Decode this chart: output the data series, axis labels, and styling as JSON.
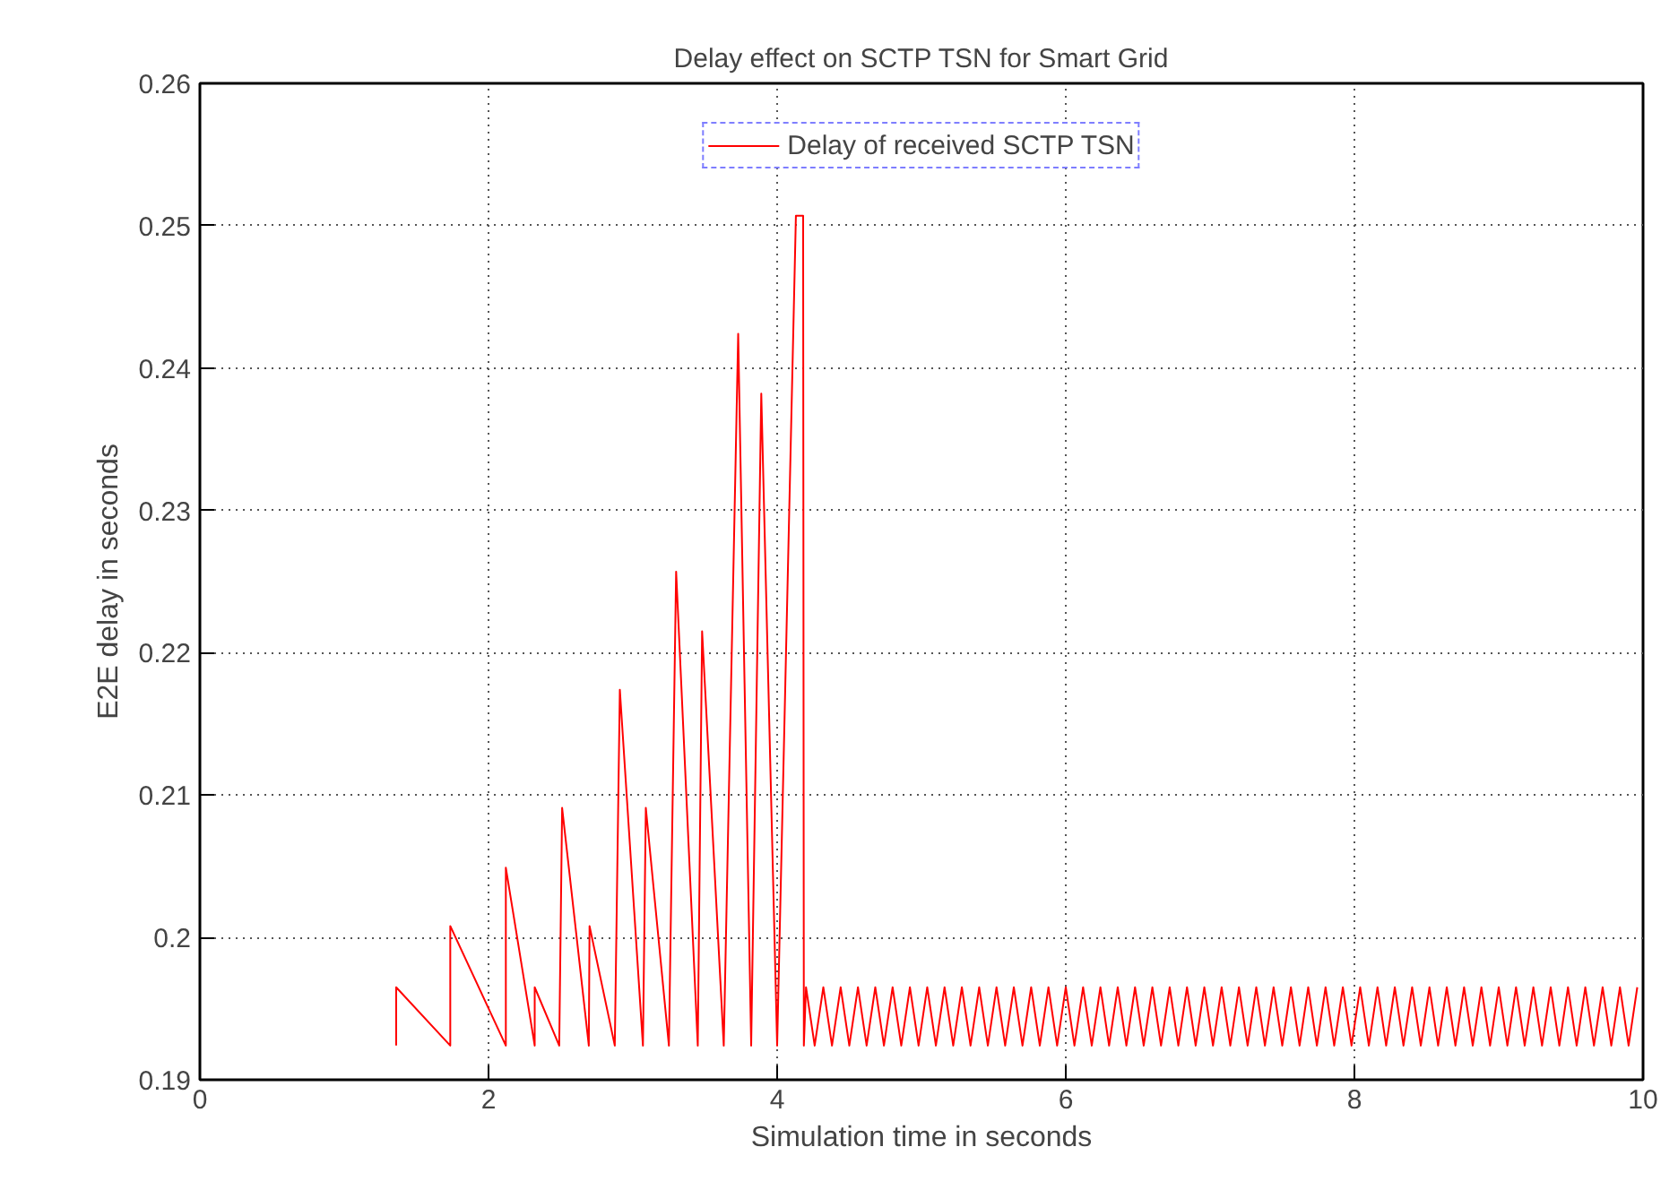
{
  "chart_data": {
    "type": "line",
    "title": "Delay effect on SCTP TSN for Smart Grid",
    "xlabel": "Simulation time in seconds",
    "ylabel": "E2E delay in seconds",
    "xlim": [
      0,
      10
    ],
    "xticks": [
      0,
      2,
      4,
      6,
      8,
      10
    ],
    "ylim": [
      0.19,
      0.26
    ],
    "yticks": [
      0.19,
      0.2,
      0.21,
      0.22,
      0.23,
      0.24,
      0.25,
      0.26
    ],
    "grid": true,
    "legend": "top",
    "line_style": "solid",
    "series": [
      {
        "name": "Delay of received SCTP TSN",
        "color": "#ff0000",
        "x": [
          1.36,
          1.36,
          1.735,
          1.735,
          2.12,
          2.12,
          2.32,
          2.32,
          2.49,
          2.51,
          2.695,
          2.7,
          2.875,
          2.91,
          3.07,
          3.09,
          3.25,
          3.3,
          3.45,
          3.48,
          3.63,
          3.73,
          3.82,
          3.89,
          4.0,
          4.13,
          4.18,
          4.185,
          4.2,
          4.26,
          4.32,
          4.38,
          4.44,
          4.5,
          4.56,
          4.62,
          4.68,
          4.74,
          4.8,
          4.86,
          4.92,
          4.98,
          5.04,
          5.1,
          5.16,
          5.22,
          5.28,
          5.34,
          5.4,
          5.46,
          5.52,
          5.58,
          5.64,
          5.7,
          5.76,
          5.82,
          5.88,
          5.94,
          6.0,
          6.06,
          6.12,
          6.18,
          6.24,
          6.3,
          6.36,
          6.42,
          6.48,
          6.54,
          6.6,
          6.66,
          6.72,
          6.78,
          6.84,
          6.9,
          6.96,
          7.02,
          7.08,
          7.14,
          7.2,
          7.26,
          7.32,
          7.38,
          7.44,
          7.5,
          7.56,
          7.62,
          7.68,
          7.74,
          7.8,
          7.86,
          7.92,
          7.98,
          8.04,
          8.1,
          8.16,
          8.22,
          8.28,
          8.34,
          8.4,
          8.46,
          8.52,
          8.58,
          8.64,
          8.7,
          8.76,
          8.82,
          8.88,
          8.94,
          9.0,
          9.06,
          9.12,
          9.18,
          9.24,
          9.3,
          9.36,
          9.42,
          9.48,
          9.54,
          9.6,
          9.66,
          9.72,
          9.78,
          9.84,
          9.9,
          9.96
        ],
        "values": [
          0.1924,
          0.1965,
          0.1924,
          0.2008,
          0.1924,
          0.2049,
          0.1924,
          0.1965,
          0.1924,
          0.2091,
          0.1924,
          0.2008,
          0.1924,
          0.2174,
          0.1924,
          0.2091,
          0.1924,
          0.2257,
          0.1924,
          0.2215,
          0.1924,
          0.2424,
          0.1924,
          0.2382,
          0.1924,
          0.2507,
          0.2507,
          0.1924,
          0.1965,
          0.1924,
          0.1965,
          0.1924,
          0.1965,
          0.1924,
          0.1965,
          0.1924,
          0.1965,
          0.1924,
          0.1965,
          0.1924,
          0.1965,
          0.1924,
          0.1965,
          0.1924,
          0.1965,
          0.1924,
          0.1965,
          0.1924,
          0.1965,
          0.1924,
          0.1965,
          0.1924,
          0.1965,
          0.1924,
          0.1965,
          0.1924,
          0.1965,
          0.1924,
          0.1965,
          0.1924,
          0.1965,
          0.1924,
          0.1965,
          0.1924,
          0.1965,
          0.1924,
          0.1965,
          0.1924,
          0.1965,
          0.1924,
          0.1965,
          0.1924,
          0.1965,
          0.1924,
          0.1965,
          0.1924,
          0.1965,
          0.1924,
          0.1965,
          0.1924,
          0.1965,
          0.1924,
          0.1965,
          0.1924,
          0.1965,
          0.1924,
          0.1965,
          0.1924,
          0.1965,
          0.1924,
          0.1965,
          0.1924,
          0.1965,
          0.1924,
          0.1965,
          0.1924,
          0.1965,
          0.1924,
          0.1965,
          0.1924,
          0.1965,
          0.1924,
          0.1965,
          0.1924,
          0.1965,
          0.1924,
          0.1965,
          0.1924,
          0.1965,
          0.1924,
          0.1965,
          0.1924,
          0.1965,
          0.1924,
          0.1965,
          0.1924,
          0.1965,
          0.1924,
          0.1965,
          0.1924,
          0.1965,
          0.1924,
          0.1965,
          0.1924,
          0.1965
        ]
      }
    ]
  }
}
